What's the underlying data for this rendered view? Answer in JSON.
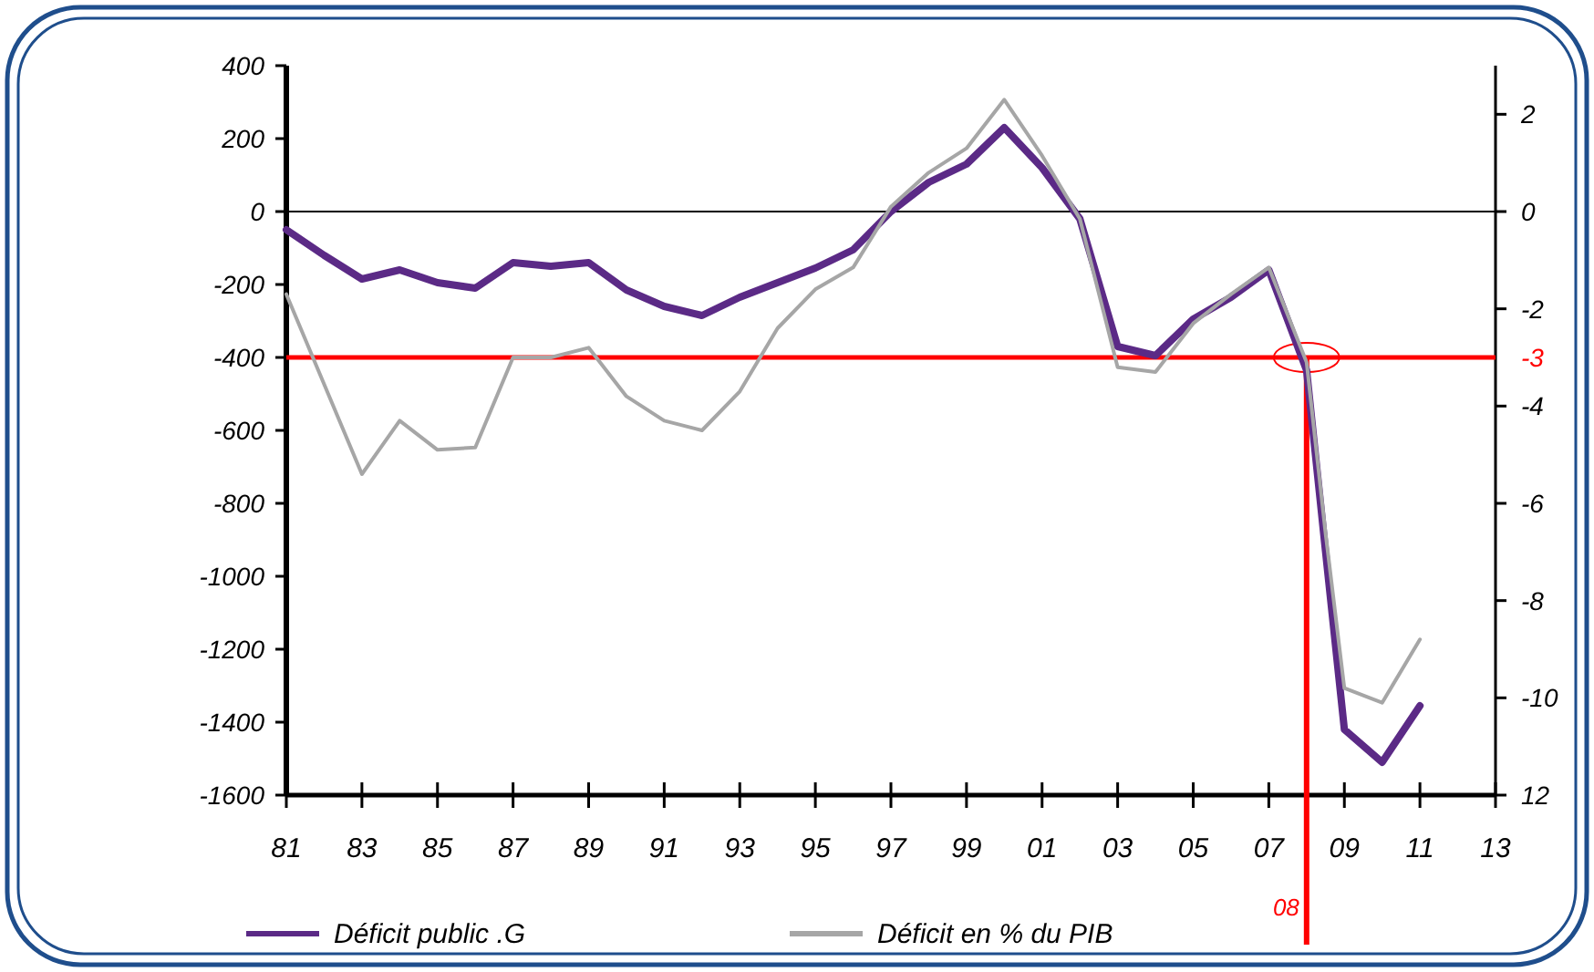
{
  "chart_data": {
    "type": "line",
    "xlim": [
      1981,
      2013
    ],
    "xticks": [
      {
        "value": 1981,
        "label": "81"
      },
      {
        "value": 1983,
        "label": "83"
      },
      {
        "value": 1985,
        "label": "85"
      },
      {
        "value": 1987,
        "label": "87"
      },
      {
        "value": 1989,
        "label": "89"
      },
      {
        "value": 1991,
        "label": "91"
      },
      {
        "value": 1993,
        "label": "93"
      },
      {
        "value": 1995,
        "label": "95"
      },
      {
        "value": 1997,
        "label": "97"
      },
      {
        "value": 1999,
        "label": "99"
      },
      {
        "value": 2001,
        "label": "01"
      },
      {
        "value": 2003,
        "label": "03"
      },
      {
        "value": 2005,
        "label": "05"
      },
      {
        "value": 2007,
        "label": "07"
      },
      {
        "value": 2009,
        "label": "09"
      },
      {
        "value": 2011,
        "label": "11"
      },
      {
        "value": 2013,
        "label": "13"
      }
    ],
    "ylim": [
      -1600,
      400
    ],
    "yticks": [
      400,
      200,
      0,
      -200,
      -400,
      -600,
      -800,
      -1000,
      -1200,
      -1400,
      -1600
    ],
    "y2lim": [
      -12,
      3
    ],
    "y2ticks": [
      2,
      0,
      -2,
      -4,
      -6,
      -8,
      -10,
      {
        "value": -12,
        "label": "12"
      }
    ],
    "series": [
      {
        "name": "Déficit public .G",
        "color": "#5b2a86",
        "x": [
          1981,
          1982,
          1983,
          1984,
          1985,
          1986,
          1987,
          1988,
          1989,
          1990,
          1991,
          1992,
          1993,
          1994,
          1995,
          1996,
          1997,
          1998,
          1999,
          2000,
          2001,
          2002,
          2003,
          2004,
          2005,
          2006,
          2007,
          2008,
          2008.5,
          2009,
          2010,
          2011
        ],
        "values": [
          -50,
          -120,
          -185,
          -160,
          -195,
          -210,
          -140,
          -150,
          -140,
          -215,
          -260,
          -285,
          -235,
          -195,
          -155,
          -105,
          0,
          80,
          130,
          230,
          120,
          -20,
          -370,
          -395,
          -295,
          -235,
          -160,
          -435,
          -930,
          -1420,
          -1510,
          -1355
        ]
      },
      {
        "name": "Déficit en % du PIB",
        "color": "#a6a6a6",
        "axis": "y2",
        "x": [
          1981,
          1983,
          1984,
          1985,
          1986,
          1987,
          1988,
          1989,
          1990,
          1991,
          1992,
          1993,
          1994,
          1995,
          1996,
          1997,
          1998,
          1999,
          2000,
          2001,
          2002,
          2003,
          2004,
          2005,
          2006,
          2007,
          2008,
          2008.5,
          2009,
          2010,
          2011
        ],
        "values": [
          -1.7,
          -5.4,
          -4.3,
          -4.9,
          -4.85,
          -3.0,
          -3.0,
          -2.8,
          -3.8,
          -4.3,
          -4.5,
          -3.7,
          -2.4,
          -1.6,
          -1.15,
          0.1,
          0.8,
          1.3,
          2.3,
          1.15,
          -0.15,
          -3.2,
          -3.3,
          -2.3,
          -1.7,
          -1.15,
          -3.1,
          -6.6,
          -9.8,
          -10.1,
          -8.8
        ]
      }
    ],
    "ref_lines": [
      {
        "axis": "y",
        "value": 0,
        "color": "#000000"
      },
      {
        "axis": "y2",
        "value": -3,
        "label": "-3",
        "color": "#ff0000"
      },
      {
        "axis": "x",
        "value": 2008,
        "color": "#ff0000"
      }
    ],
    "annotations": [
      {
        "text": "08",
        "x": 2008
      }
    ],
    "grid": false,
    "legend": "bottom",
    "line_style": "solid",
    "marker": "none"
  }
}
